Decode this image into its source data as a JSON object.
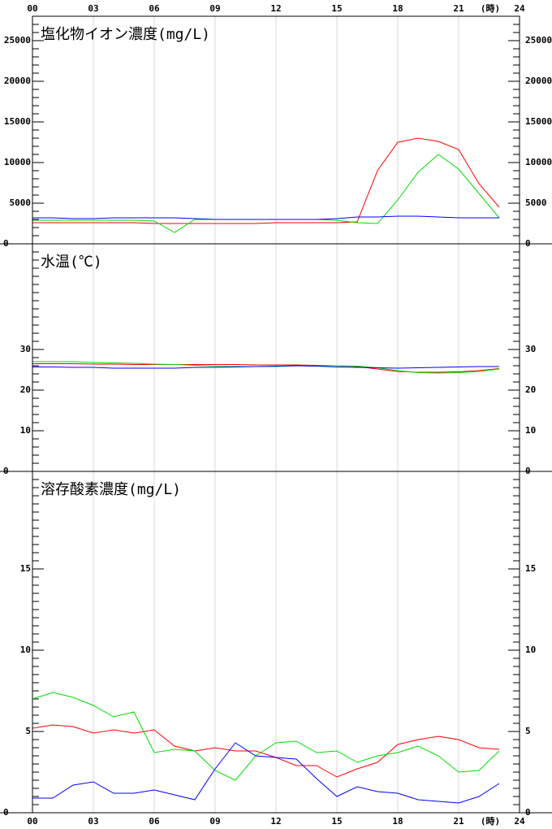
{
  "x_axis": {
    "xlim": [
      0,
      24
    ],
    "unit": "(時)",
    "xticks": [
      {
        "value": 0,
        "label": "00"
      },
      {
        "value": 3,
        "label": "03"
      },
      {
        "value": 6,
        "label": "06"
      },
      {
        "value": 9,
        "label": "09"
      },
      {
        "value": 12,
        "label": "12"
      },
      {
        "value": 15,
        "label": "15"
      },
      {
        "value": 18,
        "label": "18"
      },
      {
        "value": 21,
        "label": "21"
      },
      24
    ]
  },
  "chart_data": [
    {
      "type": "line",
      "title": "塩化物イオン濃度(mg/L)",
      "x": [
        0,
        1,
        2,
        3,
        4,
        5,
        6,
        7,
        8,
        9,
        10,
        11,
        12,
        13,
        14,
        15,
        16,
        17,
        18,
        19,
        20,
        21,
        22,
        23
      ],
      "ylim": [
        0,
        28000
      ],
      "yticks": [
        0,
        5000,
        10000,
        15000,
        20000,
        25000
      ],
      "series": [
        {
          "color": "#ff0000",
          "values": [
            2600,
            2600,
            2600,
            2600,
            2600,
            2600,
            2500,
            2500,
            2500,
            2500,
            2500,
            2500,
            2600,
            2600,
            2600,
            2600,
            2700,
            9000,
            12500,
            13000,
            12600,
            11600,
            7400,
            4500
          ]
        },
        {
          "color": "#00dd00",
          "values": [
            2900,
            2900,
            2900,
            2900,
            2900,
            2900,
            2800,
            1400,
            3000,
            3000,
            3000,
            3000,
            3000,
            3000,
            3000,
            2900,
            2600,
            2500,
            5400,
            8800,
            11000,
            9200,
            6200,
            3200
          ]
        },
        {
          "color": "#0000ff",
          "values": [
            3200,
            3200,
            3100,
            3100,
            3200,
            3200,
            3200,
            3200,
            3100,
            3000,
            3000,
            3000,
            3000,
            3000,
            3000,
            3100,
            3300,
            3300,
            3400,
            3400,
            3300,
            3200,
            3200,
            3200
          ]
        }
      ]
    },
    {
      "type": "line",
      "title": "水温(℃)",
      "x": [
        0,
        1,
        2,
        3,
        4,
        5,
        6,
        7,
        8,
        9,
        10,
        11,
        12,
        13,
        14,
        15,
        16,
        17,
        18,
        19,
        20,
        21,
        22,
        23
      ],
      "ylim": [
        0,
        56
      ],
      "yticks": [
        0,
        10,
        20,
        30
      ],
      "series": [
        {
          "color": "#ff0000",
          "values": [
            26.5,
            26.5,
            26.5,
            26.4,
            26.4,
            26.3,
            26.3,
            26.3,
            26.3,
            26.3,
            26.3,
            26.2,
            26.2,
            26.2,
            26.1,
            26.0,
            25.8,
            25.2,
            24.6,
            24.4,
            24.4,
            24.5,
            24.8,
            25.3
          ]
        },
        {
          "color": "#00dd00",
          "values": [
            27.0,
            27.0,
            27.0,
            26.8,
            26.7,
            26.6,
            26.4,
            26.3,
            26.1,
            25.9,
            25.8,
            25.8,
            25.8,
            26.0,
            26.0,
            26.0,
            25.9,
            25.5,
            24.8,
            24.3,
            24.2,
            24.3,
            24.6,
            25.2
          ]
        },
        {
          "color": "#0000ff",
          "values": [
            25.7,
            25.7,
            25.6,
            25.6,
            25.4,
            25.4,
            25.4,
            25.4,
            25.6,
            25.6,
            25.7,
            25.8,
            25.9,
            26.0,
            25.9,
            25.7,
            25.6,
            25.5,
            25.4,
            25.5,
            25.6,
            25.7,
            25.8,
            25.8
          ]
        }
      ]
    },
    {
      "type": "line",
      "title": "溶存酸素濃度(mg/L)",
      "x": [
        0,
        1,
        2,
        3,
        4,
        5,
        6,
        7,
        8,
        9,
        10,
        11,
        12,
        13,
        14,
        15,
        16,
        17,
        18,
        19,
        20,
        21,
        22,
        23
      ],
      "ylim": [
        0,
        21
      ],
      "yticks": [
        0,
        5,
        10,
        15
      ],
      "series": [
        {
          "color": "#ff0000",
          "values": [
            5.2,
            5.4,
            5.3,
            4.9,
            5.1,
            4.9,
            5.1,
            4.1,
            3.8,
            4.0,
            3.8,
            3.8,
            3.4,
            2.9,
            2.9,
            2.2,
            2.7,
            3.1,
            4.2,
            4.5,
            4.7,
            4.5,
            4.0,
            3.9
          ]
        },
        {
          "color": "#00dd00",
          "values": [
            7.0,
            7.4,
            7.1,
            6.6,
            5.9,
            6.2,
            3.7,
            3.9,
            3.8,
            2.6,
            2.0,
            3.5,
            4.3,
            4.4,
            3.7,
            3.8,
            3.1,
            3.5,
            3.7,
            4.1,
            3.5,
            2.5,
            2.6,
            3.8
          ]
        },
        {
          "color": "#0000ff",
          "values": [
            0.9,
            0.9,
            1.7,
            1.9,
            1.2,
            1.2,
            1.4,
            1.1,
            0.8,
            2.7,
            4.3,
            3.5,
            3.4,
            3.3,
            2.1,
            1.0,
            1.6,
            1.3,
            1.2,
            0.8,
            0.7,
            0.6,
            1.0,
            1.8
          ]
        }
      ]
    }
  ]
}
